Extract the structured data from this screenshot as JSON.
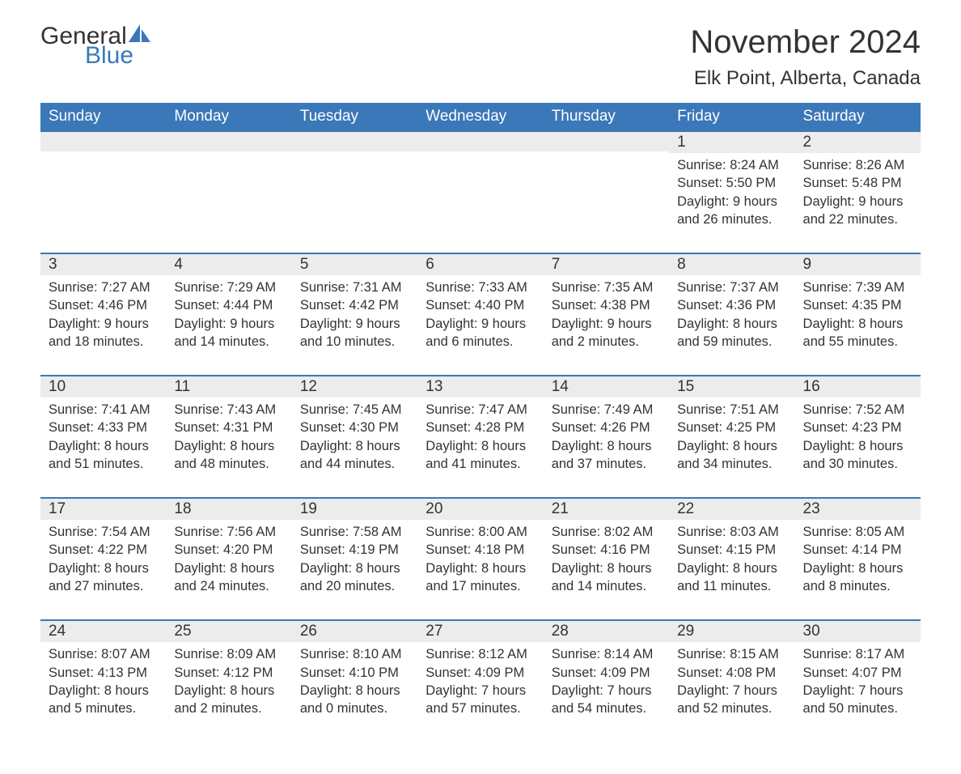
{
  "brand": {
    "text_general": "General",
    "text_blue": "Blue",
    "sail_color": "#3b78b9",
    "text_color_dark": "#333333"
  },
  "title": "November 2024",
  "location": "Elk Point, Alberta, Canada",
  "colors": {
    "header_bg": "#3b78b9",
    "header_text": "#ffffff",
    "daynum_bg": "#ececec",
    "border": "#3b78b9",
    "body_bg": "#ffffff",
    "text": "#333333"
  },
  "typography": {
    "title_fontsize_pt": 30,
    "location_fontsize_pt": 18,
    "header_fontsize_pt": 14,
    "cell_fontsize_pt": 12
  },
  "layout": {
    "columns": 7,
    "rows": 5,
    "leading_blanks": 5
  },
  "day_headers": [
    "Sunday",
    "Monday",
    "Tuesday",
    "Wednesday",
    "Thursday",
    "Friday",
    "Saturday"
  ],
  "sunrise_label": "Sunrise: ",
  "sunset_label": "Sunset: ",
  "daylight_label": "Daylight: ",
  "days": [
    {
      "n": 1,
      "sunrise": "8:24 AM",
      "sunset": "5:50 PM",
      "daylight": "9 hours and 26 minutes."
    },
    {
      "n": 2,
      "sunrise": "8:26 AM",
      "sunset": "5:48 PM",
      "daylight": "9 hours and 22 minutes."
    },
    {
      "n": 3,
      "sunrise": "7:27 AM",
      "sunset": "4:46 PM",
      "daylight": "9 hours and 18 minutes."
    },
    {
      "n": 4,
      "sunrise": "7:29 AM",
      "sunset": "4:44 PM",
      "daylight": "9 hours and 14 minutes."
    },
    {
      "n": 5,
      "sunrise": "7:31 AM",
      "sunset": "4:42 PM",
      "daylight": "9 hours and 10 minutes."
    },
    {
      "n": 6,
      "sunrise": "7:33 AM",
      "sunset": "4:40 PM",
      "daylight": "9 hours and 6 minutes."
    },
    {
      "n": 7,
      "sunrise": "7:35 AM",
      "sunset": "4:38 PM",
      "daylight": "9 hours and 2 minutes."
    },
    {
      "n": 8,
      "sunrise": "7:37 AM",
      "sunset": "4:36 PM",
      "daylight": "8 hours and 59 minutes."
    },
    {
      "n": 9,
      "sunrise": "7:39 AM",
      "sunset": "4:35 PM",
      "daylight": "8 hours and 55 minutes."
    },
    {
      "n": 10,
      "sunrise": "7:41 AM",
      "sunset": "4:33 PM",
      "daylight": "8 hours and 51 minutes."
    },
    {
      "n": 11,
      "sunrise": "7:43 AM",
      "sunset": "4:31 PM",
      "daylight": "8 hours and 48 minutes."
    },
    {
      "n": 12,
      "sunrise": "7:45 AM",
      "sunset": "4:30 PM",
      "daylight": "8 hours and 44 minutes."
    },
    {
      "n": 13,
      "sunrise": "7:47 AM",
      "sunset": "4:28 PM",
      "daylight": "8 hours and 41 minutes."
    },
    {
      "n": 14,
      "sunrise": "7:49 AM",
      "sunset": "4:26 PM",
      "daylight": "8 hours and 37 minutes."
    },
    {
      "n": 15,
      "sunrise": "7:51 AM",
      "sunset": "4:25 PM",
      "daylight": "8 hours and 34 minutes."
    },
    {
      "n": 16,
      "sunrise": "7:52 AM",
      "sunset": "4:23 PM",
      "daylight": "8 hours and 30 minutes."
    },
    {
      "n": 17,
      "sunrise": "7:54 AM",
      "sunset": "4:22 PM",
      "daylight": "8 hours and 27 minutes."
    },
    {
      "n": 18,
      "sunrise": "7:56 AM",
      "sunset": "4:20 PM",
      "daylight": "8 hours and 24 minutes."
    },
    {
      "n": 19,
      "sunrise": "7:58 AM",
      "sunset": "4:19 PM",
      "daylight": "8 hours and 20 minutes."
    },
    {
      "n": 20,
      "sunrise": "8:00 AM",
      "sunset": "4:18 PM",
      "daylight": "8 hours and 17 minutes."
    },
    {
      "n": 21,
      "sunrise": "8:02 AM",
      "sunset": "4:16 PM",
      "daylight": "8 hours and 14 minutes."
    },
    {
      "n": 22,
      "sunrise": "8:03 AM",
      "sunset": "4:15 PM",
      "daylight": "8 hours and 11 minutes."
    },
    {
      "n": 23,
      "sunrise": "8:05 AM",
      "sunset": "4:14 PM",
      "daylight": "8 hours and 8 minutes."
    },
    {
      "n": 24,
      "sunrise": "8:07 AM",
      "sunset": "4:13 PM",
      "daylight": "8 hours and 5 minutes."
    },
    {
      "n": 25,
      "sunrise": "8:09 AM",
      "sunset": "4:12 PM",
      "daylight": "8 hours and 2 minutes."
    },
    {
      "n": 26,
      "sunrise": "8:10 AM",
      "sunset": "4:10 PM",
      "daylight": "8 hours and 0 minutes."
    },
    {
      "n": 27,
      "sunrise": "8:12 AM",
      "sunset": "4:09 PM",
      "daylight": "7 hours and 57 minutes."
    },
    {
      "n": 28,
      "sunrise": "8:14 AM",
      "sunset": "4:09 PM",
      "daylight": "7 hours and 54 minutes."
    },
    {
      "n": 29,
      "sunrise": "8:15 AM",
      "sunset": "4:08 PM",
      "daylight": "7 hours and 52 minutes."
    },
    {
      "n": 30,
      "sunrise": "8:17 AM",
      "sunset": "4:07 PM",
      "daylight": "7 hours and 50 minutes."
    }
  ]
}
